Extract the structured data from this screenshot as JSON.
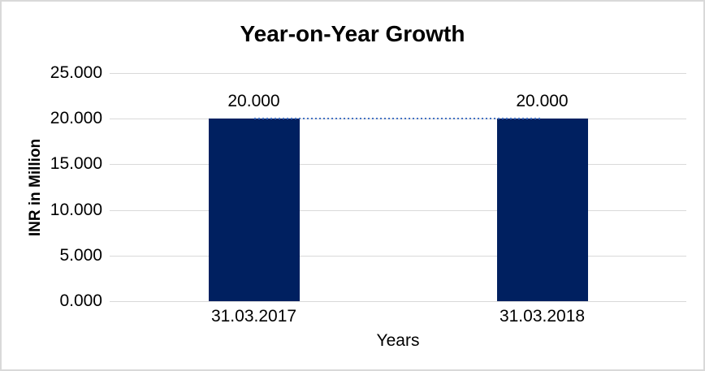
{
  "chart_data": {
    "type": "bar",
    "title": "Year-on-Year Growth",
    "xlabel": "Years",
    "ylabel": "INR in Million",
    "categories": [
      "31.03.2017",
      "31.03.2018"
    ],
    "values": [
      20,
      20
    ],
    "data_labels": [
      "20.000",
      "20.000"
    ],
    "ylim": [
      0,
      25
    ],
    "y_ticks": [
      {
        "value": 0,
        "label": "0.000"
      },
      {
        "value": 5,
        "label": "5.000"
      },
      {
        "value": 10,
        "label": "10.000"
      },
      {
        "value": 15,
        "label": "15.000"
      },
      {
        "value": 20,
        "label": "20.000"
      },
      {
        "value": 25,
        "label": "25.000"
      }
    ],
    "grid": "horizontal",
    "legend": "none",
    "trendline": {
      "type": "connector",
      "style": "dotted",
      "value": 20
    },
    "colors": {
      "bar": "#002060",
      "trendline": "#4472C4",
      "gridline": "#D9D9D9",
      "text": "#000000",
      "frame_border": "#D9D9D9",
      "background": "#FFFFFF"
    }
  }
}
